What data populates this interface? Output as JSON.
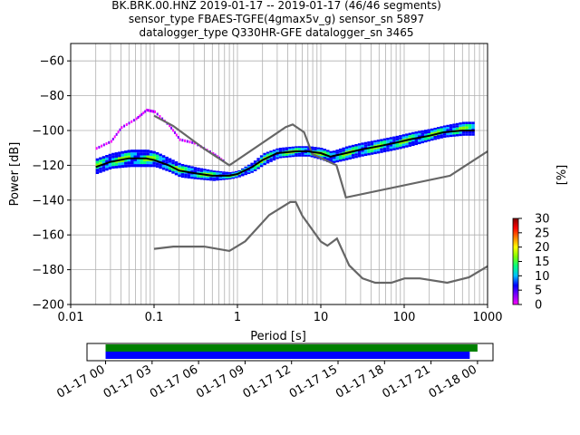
{
  "title_lines": [
    "BK.BRK.00.HNZ   2019-01-17 -- 2019-01-17  (46/46 segments)",
    "sensor_type FBAES-TGFE(4gmax5v_g) sensor_sn 5897",
    "datalogger_type Q330HR-GFE datalogger_sn 3465"
  ],
  "colors": {
    "axes": "#000000",
    "grid": "#b0b0b0",
    "noise_models": "#666666",
    "mode_line": "#000000",
    "coverage_green": "#008000",
    "coverage_blue": "#0000ff"
  },
  "colormap_stops": [
    "#ff00ff",
    "#7f00ff",
    "#0000ff",
    "#00bfff",
    "#00ff80",
    "#80ff00",
    "#ffff00",
    "#ff8000",
    "#ff0000",
    "#7f0000"
  ],
  "chart_data": [
    {
      "type": "heatmap",
      "name_hint": "ppsd",
      "xlabel": "Period [s]",
      "ylabel": "Power [dB]",
      "xscale": "log",
      "xlim": [
        0.01,
        1000
      ],
      "ylim": [
        -200,
        -50
      ],
      "grid": true,
      "x_tick_labels": [
        "0.01",
        "0.1",
        "1",
        "10",
        "100",
        "1000"
      ],
      "y_tick_labels": [
        "−200",
        "−180",
        "−160",
        "−140",
        "−120",
        "−100",
        "−80",
        "−60"
      ],
      "x_ticks": [
        0.01,
        0.1,
        1,
        10,
        100,
        1000
      ],
      "y_ticks": [
        -200,
        -180,
        -160,
        -140,
        -120,
        -100,
        -80,
        -60
      ],
      "colorbar": {
        "label": "[%]",
        "range": [
          0,
          30
        ],
        "tick_labels": [
          "0",
          "5",
          "10",
          "15",
          "20",
          "25",
          "30"
        ],
        "ticks": [
          0,
          5,
          10,
          15,
          20,
          25,
          30
        ]
      },
      "mode_curve": {
        "x": [
          0.02,
          0.03,
          0.05,
          0.08,
          0.1,
          0.15,
          0.2,
          0.3,
          0.5,
          0.8,
          1.0,
          1.5,
          2,
          3,
          5,
          7,
          10,
          13,
          20,
          30,
          50,
          80,
          120,
          200,
          300,
          500,
          700
        ],
        "y": [
          -121,
          -118,
          -116,
          -116,
          -117,
          -120,
          -123,
          -124.5,
          -126,
          -126,
          -125,
          -121,
          -117,
          -113,
          -112,
          -112,
          -113,
          -115,
          -113,
          -111,
          -109,
          -107,
          -105,
          -103,
          -101,
          -100,
          -100
        ]
      },
      "density_band": {
        "x": [
          0.02,
          0.03,
          0.05,
          0.08,
          0.1,
          0.15,
          0.2,
          0.3,
          0.5,
          0.8,
          1.0,
          1.5,
          2,
          3,
          5,
          7,
          10,
          13,
          20,
          30,
          50,
          80,
          120,
          200,
          300,
          500,
          700
        ],
        "y_low": [
          -125,
          -122,
          -121,
          -121,
          -121,
          -124,
          -127,
          -128,
          -129,
          -128,
          -127,
          -124,
          -120,
          -116,
          -115,
          -115,
          -117,
          -119,
          -117,
          -115,
          -113,
          -111,
          -109,
          -106,
          -104,
          -103,
          -103
        ],
        "y_high": [
          -116,
          -113,
          -111,
          -111,
          -112,
          -116,
          -119,
          -121,
          -123,
          -124,
          -123,
          -118,
          -113,
          -110,
          -109,
          -109,
          -110,
          -112,
          -109,
          -107,
          -105,
          -103,
          -101,
          -99,
          -97,
          -95,
          -95
        ]
      },
      "outlier_curve": {
        "x": [
          0.02,
          0.03,
          0.04,
          0.06,
          0.08,
          0.1,
          0.15,
          0.2,
          0.3,
          0.5,
          0.7
        ],
        "y": [
          -110,
          -106,
          -98,
          -93,
          -88,
          -89,
          -97,
          -105,
          -107,
          -113,
          -118
        ]
      },
      "high_noise_model": {
        "x": [
          0.1,
          0.17,
          0.4,
          0.8,
          3.8,
          4.6,
          6.3,
          7.9,
          15.4,
          20,
          354.8,
          1000
        ],
        "y": [
          -91.5,
          -97.4,
          -110.5,
          -120,
          -98,
          -96.5,
          -101,
          -113.5,
          -120,
          -138.5,
          -126,
          -112
        ]
      },
      "low_noise_model": {
        "x": [
          0.1,
          0.17,
          0.4,
          0.8,
          1.24,
          2.4,
          4.3,
          5,
          6,
          10,
          12,
          15.6,
          21.9,
          31.6,
          45,
          70,
          101,
          154,
          328,
          600,
          1000
        ],
        "y": [
          -168,
          -166.7,
          -166.7,
          -169.2,
          -163.7,
          -148.6,
          -141.1,
          -141.1,
          -149,
          -163.8,
          -166.2,
          -162.1,
          -177.5,
          -185,
          -187.5,
          -187.5,
          -185,
          -185,
          -187.5,
          -184.4,
          -178
        ]
      }
    },
    {
      "type": "timeline",
      "name_hint": "coverage",
      "x_tick_labels": [
        "01-17 00",
        "01-17 03",
        "01-17 06",
        "01-17 09",
        "01-17 12",
        "01-17 15",
        "01-17 18",
        "01-17 21",
        "01-18 00"
      ],
      "x_ticks_hours": [
        0,
        3,
        6,
        9,
        12,
        15,
        18,
        21,
        24
      ],
      "xlim_hours": [
        -1.2,
        25.0
      ],
      "bars": [
        {
          "color": "green",
          "start_hours": 0.0,
          "end_hours": 24.0
        },
        {
          "color": "blue",
          "start_hours": 0.0,
          "end_hours": 23.5
        }
      ]
    }
  ]
}
